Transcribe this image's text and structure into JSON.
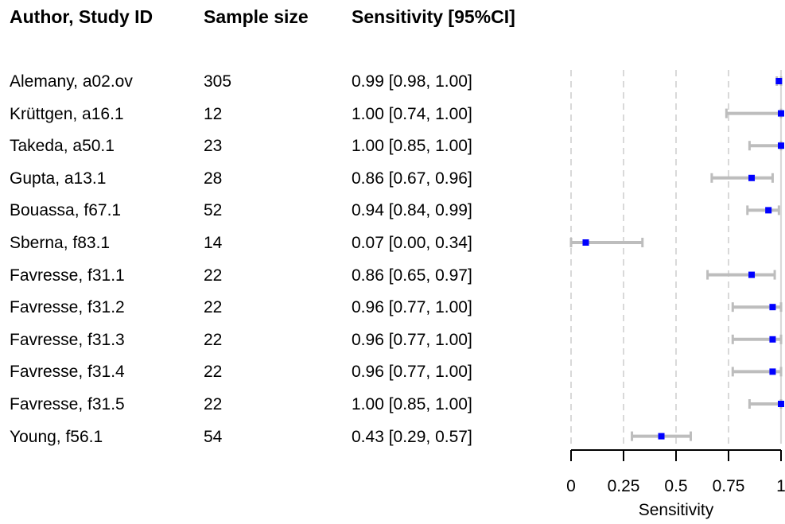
{
  "headers": {
    "author": "Author, Study ID",
    "n": "Sample size",
    "sens": "Sensitivity [95%CI]"
  },
  "rows": [
    {
      "author": "Alemany, a02.ov",
      "n": "305",
      "ci": "0.99 [0.98, 1.00]"
    },
    {
      "author": "Krüttgen, a16.1",
      "n": "12",
      "ci": "1.00 [0.74, 1.00]"
    },
    {
      "author": "Takeda, a50.1",
      "n": "23",
      "ci": "1.00 [0.85, 1.00]"
    },
    {
      "author": "Gupta, a13.1",
      "n": "28",
      "ci": "0.86 [0.67, 0.96]"
    },
    {
      "author": "Bouassa, f67.1",
      "n": "52",
      "ci": "0.94 [0.84, 0.99]"
    },
    {
      "author": "Sberna, f83.1",
      "n": "14",
      "ci": "0.07 [0.00, 0.34]"
    },
    {
      "author": "Favresse, f31.1",
      "n": "22",
      "ci": "0.86 [0.65, 0.97]"
    },
    {
      "author": "Favresse, f31.2",
      "n": "22",
      "ci": "0.96 [0.77, 1.00]"
    },
    {
      "author": "Favresse, f31.3",
      "n": "22",
      "ci": "0.96 [0.77, 1.00]"
    },
    {
      "author": "Favresse, f31.4",
      "n": "22",
      "ci": "0.96 [0.77, 1.00]"
    },
    {
      "author": "Favresse, f31.5",
      "n": "22",
      "ci": "1.00 [0.85, 1.00]"
    },
    {
      "author": "Young, f56.1",
      "n": "54",
      "ci": "0.43 [0.29, 0.57]"
    }
  ],
  "chart_data": {
    "type": "scatter",
    "subtype": "forest",
    "xlabel": "Sensitivity",
    "xlim": [
      0,
      1
    ],
    "xticks": [
      0,
      0.25,
      0.5,
      0.75,
      1
    ],
    "xtick_labels": [
      "0",
      "0.25",
      "0.5",
      "0.75",
      "1"
    ],
    "grid": "vertical dashed at ticks",
    "colors": {
      "point": "#0000ff",
      "ci": "#bdbdbd",
      "grid": "#d9d9d9",
      "axis": "#000000"
    },
    "points": [
      {
        "label": "Alemany, a02.ov",
        "est": 0.99,
        "lo": 0.98,
        "hi": 1.0
      },
      {
        "label": "Krüttgen, a16.1",
        "est": 1.0,
        "lo": 0.74,
        "hi": 1.0
      },
      {
        "label": "Takeda, a50.1",
        "est": 1.0,
        "lo": 0.85,
        "hi": 1.0
      },
      {
        "label": "Gupta, a13.1",
        "est": 0.86,
        "lo": 0.67,
        "hi": 0.96
      },
      {
        "label": "Bouassa, f67.1",
        "est": 0.94,
        "lo": 0.84,
        "hi": 0.99
      },
      {
        "label": "Sberna, f83.1",
        "est": 0.07,
        "lo": 0.0,
        "hi": 0.34
      },
      {
        "label": "Favresse, f31.1",
        "est": 0.86,
        "lo": 0.65,
        "hi": 0.97
      },
      {
        "label": "Favresse, f31.2",
        "est": 0.96,
        "lo": 0.77,
        "hi": 1.0
      },
      {
        "label": "Favresse, f31.3",
        "est": 0.96,
        "lo": 0.77,
        "hi": 1.0
      },
      {
        "label": "Favresse, f31.4",
        "est": 0.96,
        "lo": 0.77,
        "hi": 1.0
      },
      {
        "label": "Favresse, f31.5",
        "est": 1.0,
        "lo": 0.85,
        "hi": 1.0
      },
      {
        "label": "Young, f56.1",
        "est": 0.43,
        "lo": 0.29,
        "hi": 0.57
      }
    ]
  }
}
